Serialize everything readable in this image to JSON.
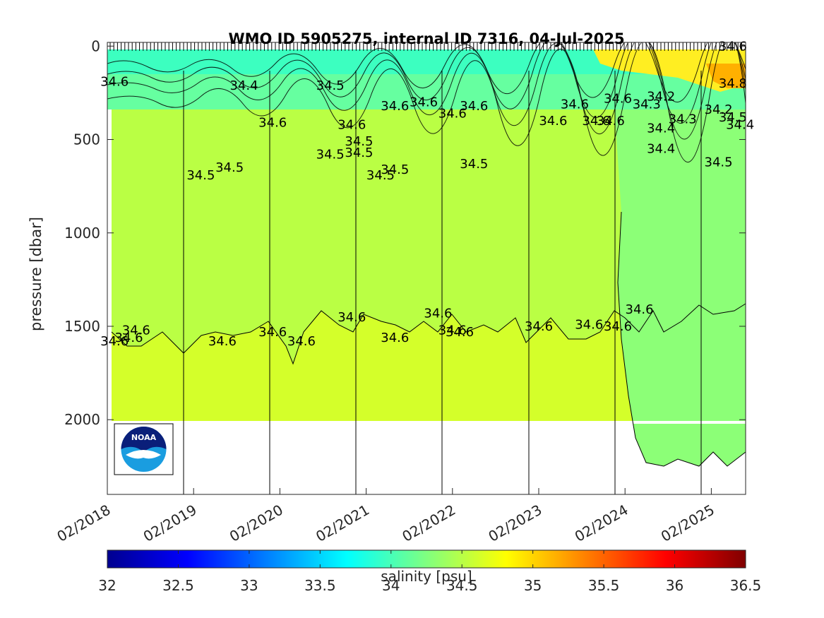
{
  "chart_data": {
    "type": "heatmap",
    "title": "WMO ID 5905275, internal ID 7316, 04-Jul-2025",
    "xlabel": "",
    "ylabel": "pressure [dbar]",
    "x_ticks": [
      "02/2018",
      "02/2019",
      "02/2020",
      "02/2021",
      "02/2022",
      "02/2023",
      "02/2024",
      "02/2025"
    ],
    "x_range": [
      "2018-02",
      "2025-07"
    ],
    "y_ticks": [
      0,
      500,
      1000,
      1500,
      2000
    ],
    "ylim": [
      2400,
      -20
    ],
    "y_reversed": true,
    "grid": false,
    "colorbar": {
      "label": "salinity [psu]",
      "ticks": [
        32,
        32.5,
        33,
        33.5,
        34,
        34.5,
        35,
        35.5,
        36,
        36.5
      ],
      "range": [
        32,
        36.5
      ]
    },
    "field": {
      "variable": "salinity",
      "unit": "psu",
      "deep_layer_value": 34.6,
      "intermediate_value": 34.5,
      "surface_range": [
        33.8,
        35.2
      ],
      "max_pressure": 2000
    },
    "contour_labels": [
      {
        "text": "34.6",
        "x": "2018-03",
        "p": 1580
      },
      {
        "text": "34.6",
        "x": "2018-05",
        "p": 1560
      },
      {
        "text": "34.6",
        "x": "2018-06",
        "p": 1520
      },
      {
        "text": "34.6",
        "x": "2019-06",
        "p": 1580
      },
      {
        "text": "34.6",
        "x": "2020-01",
        "p": 1530
      },
      {
        "text": "34.6",
        "x": "2020-05",
        "p": 1580
      },
      {
        "text": "34.6",
        "x": "2020-12",
        "p": 1450
      },
      {
        "text": "34.6",
        "x": "2021-06",
        "p": 1560
      },
      {
        "text": "34.6",
        "x": "2021-12",
        "p": 1430
      },
      {
        "text": "34.6",
        "x": "2022-02",
        "p": 1520
      },
      {
        "text": "34.6",
        "x": "2022-03",
        "p": 1530
      },
      {
        "text": "34.6",
        "x": "2023-02",
        "p": 1500
      },
      {
        "text": "34.6",
        "x": "2023-09",
        "p": 1490
      },
      {
        "text": "34.6",
        "x": "2024-01",
        "p": 1500
      },
      {
        "text": "34.6",
        "x": "2024-04",
        "p": 1410
      },
      {
        "text": "34.5",
        "x": "2019-03",
        "p": 690
      },
      {
        "text": "34.5",
        "x": "2019-07",
        "p": 650
      },
      {
        "text": "34.5",
        "x": "2021-01",
        "p": 570
      },
      {
        "text": "34.5",
        "x": "2021-01",
        "p": 510
      },
      {
        "text": "34.5",
        "x": "2021-04",
        "p": 690
      },
      {
        "text": "34.5",
        "x": "2021-06",
        "p": 660
      },
      {
        "text": "34.5",
        "x": "2022-05",
        "p": 630
      },
      {
        "text": "34.5",
        "x": "2020-09",
        "p": 580
      },
      {
        "text": "34.5",
        "x": "2025-03",
        "p": 620
      },
      {
        "text": "34.6",
        "x": "2020-01",
        "p": 410
      },
      {
        "text": "34.6",
        "x": "2020-12",
        "p": 420
      },
      {
        "text": "34.6",
        "x": "2021-06",
        "p": 320
      },
      {
        "text": "34.6",
        "x": "2021-10",
        "p": 300
      },
      {
        "text": "34.6",
        "x": "2022-02",
        "p": 360
      },
      {
        "text": "34.6",
        "x": "2022-05",
        "p": 320
      },
      {
        "text": "34.6",
        "x": "2023-04",
        "p": 400
      },
      {
        "text": "34.6",
        "x": "2023-07",
        "p": 310
      },
      {
        "text": "34.6",
        "x": "2023-12",
        "p": 400
      },
      {
        "text": "34.6",
        "x": "2024-01",
        "p": 280
      },
      {
        "text": "34.6",
        "x": "2023-10",
        "p": 400
      },
      {
        "text": "34.4",
        "x": "2019-09",
        "p": 210
      },
      {
        "text": "34.5",
        "x": "2020-09",
        "p": 210
      },
      {
        "text": "34.4",
        "x": "2024-07",
        "p": 440
      },
      {
        "text": "34.4",
        "x": "2024-07",
        "p": 550
      },
      {
        "text": "34.3",
        "x": "2024-05",
        "p": 310
      },
      {
        "text": "34.2",
        "x": "2024-07",
        "p": 270
      },
      {
        "text": "34.3",
        "x": "2024-10",
        "p": 390
      },
      {
        "text": "34.4",
        "x": "2025-06",
        "p": 420
      },
      {
        "text": "34.2",
        "x": "2025-03",
        "p": 340
      },
      {
        "text": "34.5",
        "x": "2025-05",
        "p": 380
      },
      {
        "text": "34.8",
        "x": "2025-05",
        "p": 200
      },
      {
        "text": "34.6",
        "x": "2018-03",
        "p": 190
      },
      {
        "text": "34.6",
        "x": "2025-05",
        "p": 0
      }
    ]
  },
  "logo": {
    "name": "NOAA",
    "text": "NOAA"
  }
}
